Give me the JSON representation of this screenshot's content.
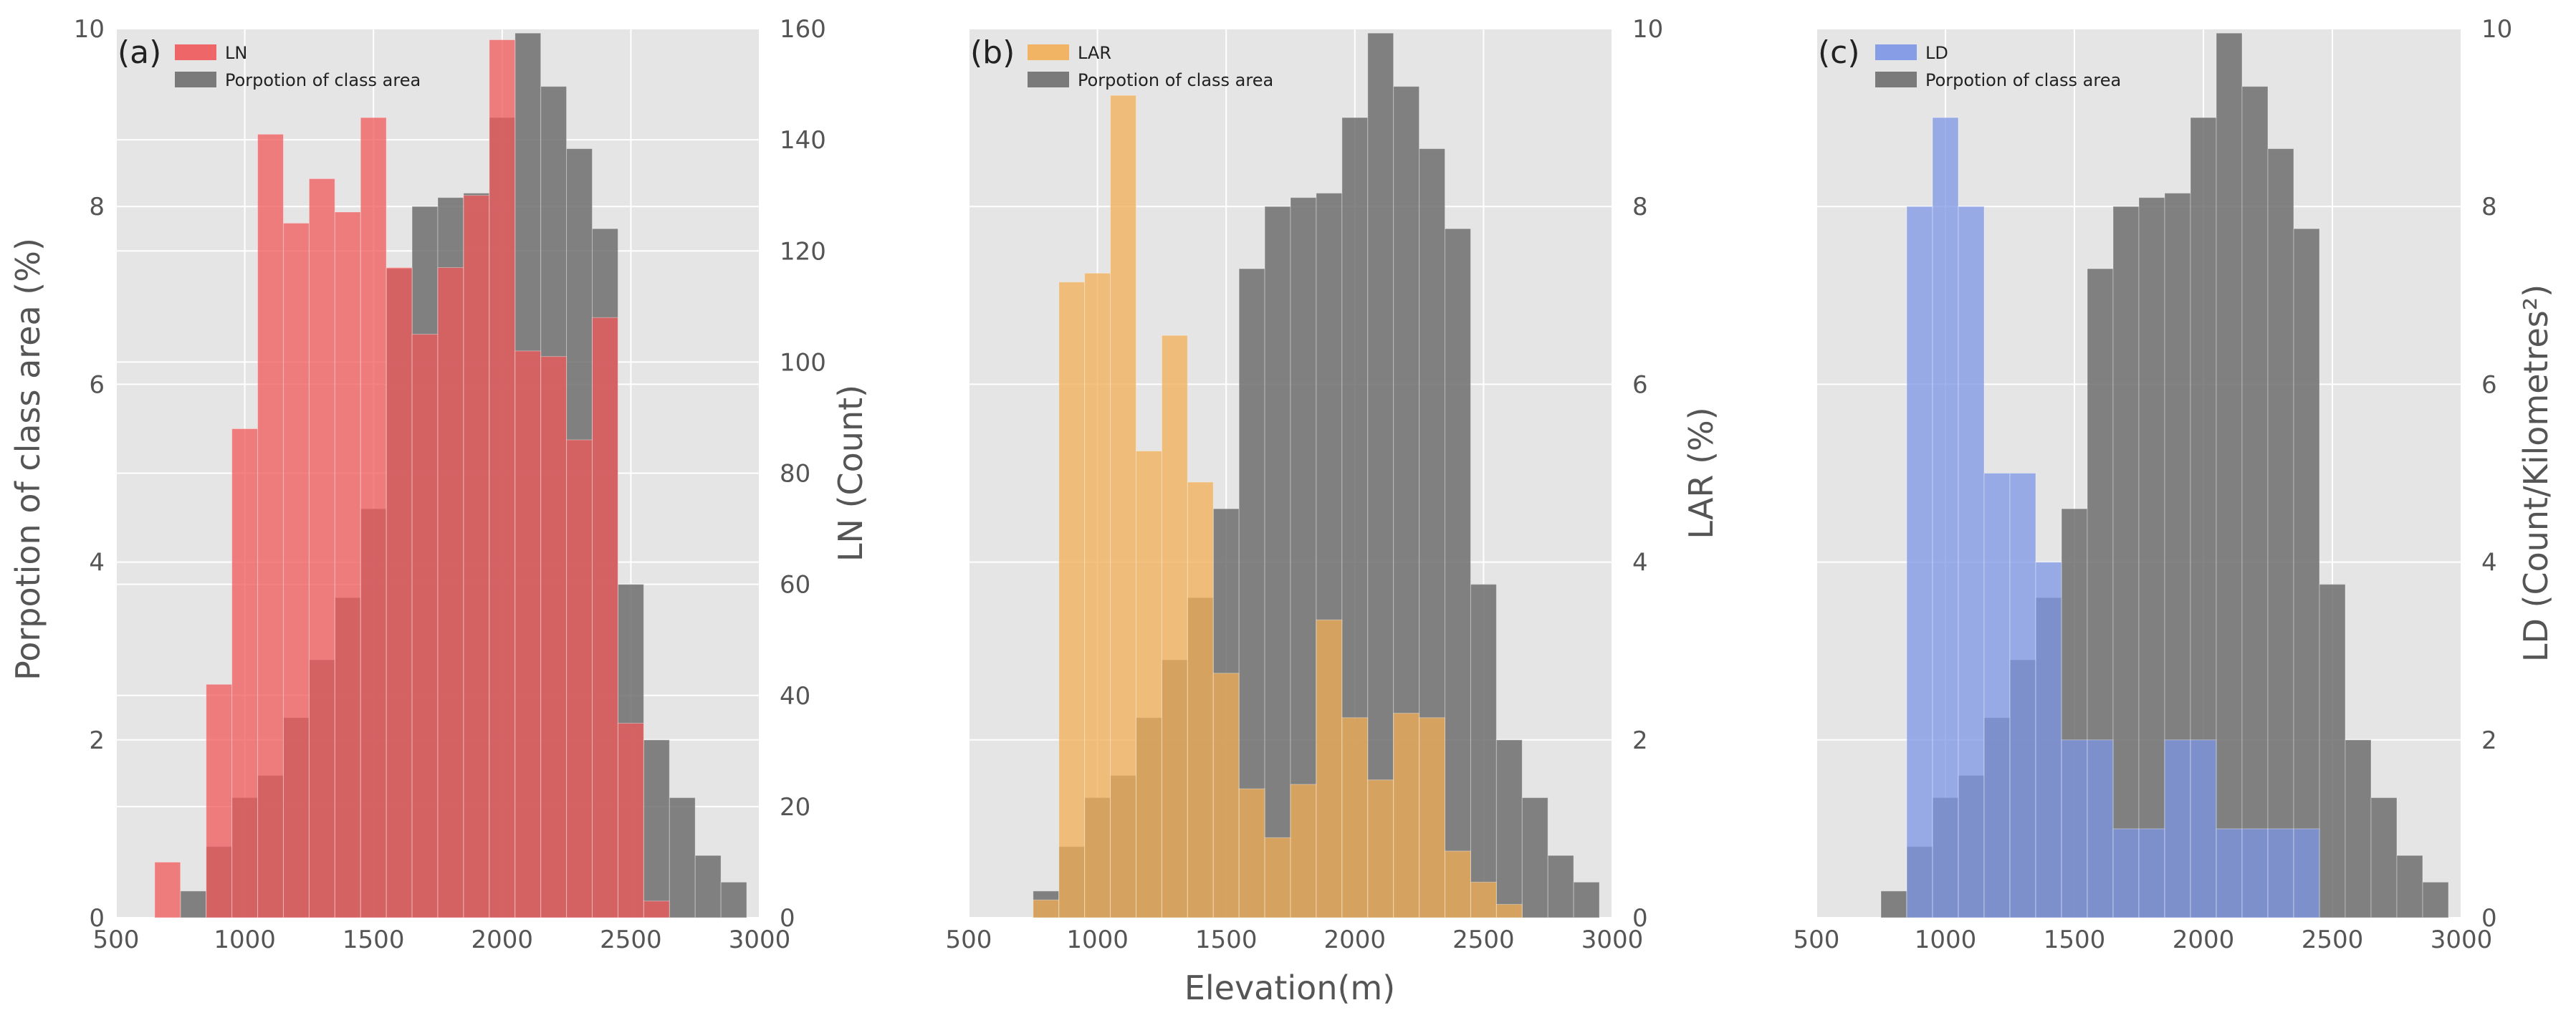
{
  "figure": {
    "xlabel": "Elevation(m)",
    "left_ylabel": "Porpotion of class area (%)"
  },
  "colors": {
    "background": "#e5e5e5",
    "grid": "#ffffff",
    "class_area": "#6e6e6e",
    "ln": "#f0585a",
    "lar": "#f2ad55",
    "ld": "#7c96e6",
    "tick_text": "#555555"
  },
  "chart_data": [
    {
      "type": "bar",
      "panel": "(a)",
      "xlim": [
        500,
        3000
      ],
      "xticks": [
        500,
        1000,
        1500,
        2000,
        2500,
        3000
      ],
      "left_ylim": [
        0,
        10
      ],
      "left_yticks": [
        0,
        2,
        4,
        6,
        8,
        10
      ],
      "right_ylim": [
        0,
        160
      ],
      "right_yticks": [
        0,
        20,
        40,
        60,
        80,
        100,
        120,
        140,
        160
      ],
      "right_ylabel": "LN (Count)",
      "legend": [
        "LN",
        "Porpotion of class area"
      ],
      "legend_position": "top-left",
      "grid": true,
      "series": [
        {
          "name": "LN",
          "axis": "right",
          "bin_edges": [
            650,
            750,
            850,
            950,
            1050,
            1150,
            1250,
            1350,
            1450,
            1550,
            1650,
            1750,
            1850,
            1950,
            2050,
            2150,
            2250,
            2350,
            2450,
            2550,
            2650
          ],
          "values": [
            10,
            0,
            42,
            88,
            141,
            125,
            133,
            127,
            144,
            117,
            105,
            117,
            130,
            158,
            102,
            101,
            86,
            108,
            35,
            3
          ]
        },
        {
          "name": "Porpotion of class area",
          "axis": "left",
          "bin_edges": [
            750,
            850,
            950,
            1050,
            1150,
            1250,
            1350,
            1450,
            1550,
            1650,
            1750,
            1850,
            1950,
            2050,
            2150,
            2250,
            2350,
            2450,
            2550,
            2650,
            2750,
            2850,
            2950
          ],
          "values": [
            0.3,
            0.8,
            1.35,
            1.6,
            2.25,
            2.9,
            3.6,
            4.6,
            7.3,
            8.0,
            8.1,
            8.15,
            9.0,
            9.95,
            9.35,
            8.65,
            7.75,
            3.75,
            2.0,
            1.35,
            0.7,
            0.4,
            0.05
          ]
        }
      ]
    },
    {
      "type": "bar",
      "panel": "(b)",
      "xlim": [
        500,
        3000
      ],
      "xticks": [
        500,
        1000,
        1500,
        2000,
        2500,
        3000
      ],
      "left_ylim": [
        0,
        10
      ],
      "left_yticks": [],
      "right_ylim": [
        0,
        10
      ],
      "right_yticks": [
        0,
        2,
        4,
        6,
        8,
        10
      ],
      "right_ylabel": "LAR (%)",
      "legend": [
        "LAR",
        "Porpotion of class area"
      ],
      "legend_position": "top-left",
      "grid": true,
      "series": [
        {
          "name": "LAR",
          "axis": "right",
          "bin_edges": [
            750,
            850,
            950,
            1050,
            1150,
            1250,
            1350,
            1450,
            1550,
            1650,
            1750,
            1850,
            1950,
            2050,
            2150,
            2250,
            2350,
            2450,
            2550,
            2650
          ],
          "values": [
            0.2,
            7.15,
            7.25,
            9.25,
            5.25,
            6.55,
            4.9,
            2.75,
            1.45,
            0.9,
            1.5,
            3.35,
            2.25,
            1.55,
            2.3,
            2.25,
            0.75,
            0.4,
            0.15
          ]
        },
        {
          "name": "Porpotion of class area",
          "axis": "left",
          "bin_edges": [
            750,
            850,
            950,
            1050,
            1150,
            1250,
            1350,
            1450,
            1550,
            1650,
            1750,
            1850,
            1950,
            2050,
            2150,
            2250,
            2350,
            2450,
            2550,
            2650,
            2750,
            2850,
            2950
          ],
          "values": [
            0.3,
            0.8,
            1.35,
            1.6,
            2.25,
            2.9,
            3.6,
            4.6,
            7.3,
            8.0,
            8.1,
            8.15,
            9.0,
            9.95,
            9.35,
            8.65,
            7.75,
            3.75,
            2.0,
            1.35,
            0.7,
            0.4,
            0.05
          ]
        }
      ]
    },
    {
      "type": "bar",
      "panel": "(c)",
      "xlim": [
        500,
        3000
      ],
      "xticks": [
        500,
        1000,
        1500,
        2000,
        2500,
        3000
      ],
      "left_ylim": [
        0,
        10
      ],
      "left_yticks": [],
      "right_ylim": [
        0,
        10
      ],
      "right_yticks": [
        0,
        2,
        4,
        6,
        8,
        10
      ],
      "right_ylabel": "LD (Count/Kilometres²)",
      "legend": [
        "LD",
        "Porpotion of class area"
      ],
      "legend_position": "top-left",
      "grid": true,
      "series": [
        {
          "name": "LD",
          "axis": "right",
          "bin_edges": [
            850,
            950,
            1050,
            1150,
            1250,
            1350,
            1450,
            1550,
            1650,
            1750,
            1850,
            1950,
            2050,
            2150,
            2250,
            2350,
            2450
          ],
          "values": [
            8.0,
            9.0,
            8.0,
            5.0,
            5.0,
            4.0,
            2.0,
            2.0,
            1.0,
            1.0,
            2.0,
            2.0,
            1.0,
            1.0,
            1.0,
            1.0
          ]
        },
        {
          "name": "Porpotion of class area",
          "axis": "left",
          "bin_edges": [
            750,
            850,
            950,
            1050,
            1150,
            1250,
            1350,
            1450,
            1550,
            1650,
            1750,
            1850,
            1950,
            2050,
            2150,
            2250,
            2350,
            2450,
            2550,
            2650,
            2750,
            2850,
            2950
          ],
          "values": [
            0.3,
            0.8,
            1.35,
            1.6,
            2.25,
            2.9,
            3.6,
            4.6,
            7.3,
            8.0,
            8.1,
            8.15,
            9.0,
            9.95,
            9.35,
            8.65,
            7.75,
            3.75,
            2.0,
            1.35,
            0.7,
            0.4,
            0.05
          ]
        }
      ]
    }
  ]
}
